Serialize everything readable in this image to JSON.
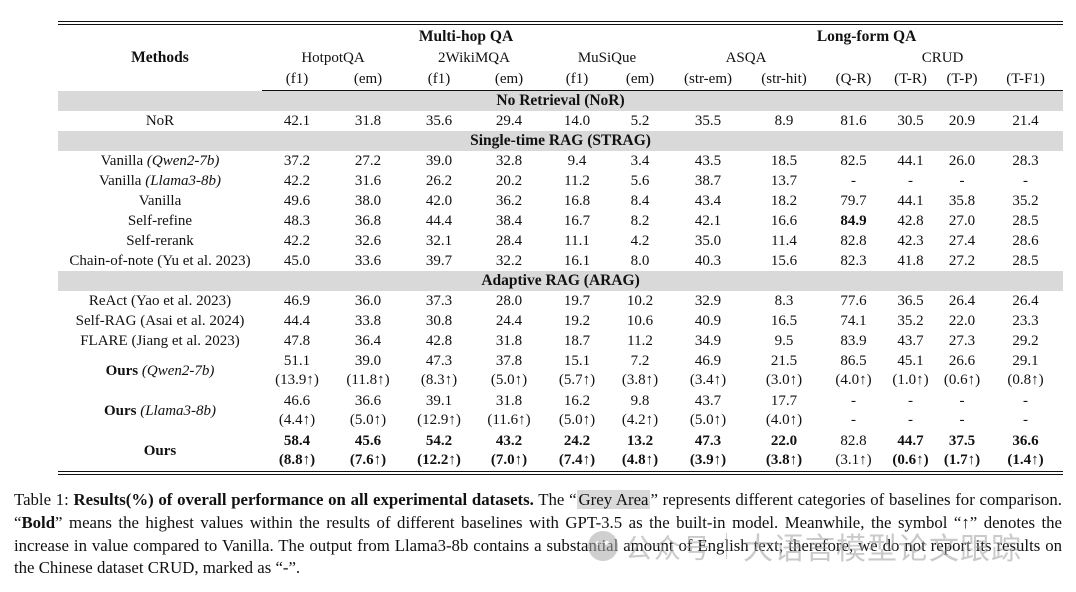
{
  "colors": {
    "banner_grey": "#d9d9d9",
    "highlight_grey": "#d9d9d9",
    "watermark_grey": "#a8a8a8"
  },
  "table": {
    "header": {
      "methods_label": "Methods",
      "groups": [
        {
          "label": "Multi-hop QA",
          "span": 6
        },
        {
          "label": "Long-form QA",
          "span": 6
        }
      ],
      "datasets": [
        {
          "label": "HotpotQA",
          "span": 2
        },
        {
          "label": "2WikiMQA",
          "span": 2
        },
        {
          "label": "MuSiQue",
          "span": 2
        },
        {
          "label": "ASQA",
          "span": 2
        },
        {
          "label": "CRUD",
          "span": 4
        }
      ],
      "metrics": [
        "(f1)",
        "(em)",
        "(f1)",
        "(em)",
        "(f1)",
        "(em)",
        "(str-em)",
        "(str-hit)",
        "(Q-R)",
        "(T-R)",
        "(T-P)",
        "(T-F1)"
      ]
    },
    "sections": [
      {
        "banner": "No Retrieval (NoR)",
        "rows": [
          {
            "method": {
              "name": "NoR"
            },
            "values": [
              "42.1",
              "31.8",
              "35.6",
              "29.4",
              "14.0",
              "5.2",
              "35.5",
              "8.9",
              "81.6",
              "30.5",
              "20.9",
              "21.4"
            ]
          }
        ]
      },
      {
        "banner": "Single-time RAG (STRAG)",
        "rows": [
          {
            "method": {
              "name": "Vanilla",
              "paren": "(Qwen2-7b)",
              "paren_italic": true
            },
            "values": [
              "37.2",
              "27.2",
              "39.0",
              "32.8",
              "9.4",
              "3.4",
              "43.5",
              "18.5",
              "82.5",
              "44.1",
              "26.0",
              "28.3"
            ]
          },
          {
            "method": {
              "name": "Vanilla",
              "paren": "(Llama3-8b)",
              "paren_italic": true
            },
            "values": [
              "42.2",
              "31.6",
              "26.2",
              "20.2",
              "11.2",
              "5.6",
              "38.7",
              "13.7",
              "-",
              "-",
              "-",
              "-"
            ]
          },
          {
            "method": {
              "name": "Vanilla"
            },
            "values": [
              "49.6",
              "38.0",
              "42.0",
              "36.2",
              "16.8",
              "8.4",
              "43.4",
              "18.2",
              "79.7",
              "44.1",
              "35.8",
              "35.2"
            ]
          },
          {
            "method": {
              "name": "Self-refine"
            },
            "values": [
              "48.3",
              "36.8",
              "44.4",
              "38.4",
              "16.7",
              "8.2",
              "42.1",
              "16.6",
              "84.9",
              "42.8",
              "27.0",
              "28.5"
            ],
            "bold_cols": [
              8
            ]
          },
          {
            "method": {
              "name": "Self-rerank"
            },
            "values": [
              "42.2",
              "32.6",
              "32.1",
              "28.4",
              "11.1",
              "4.2",
              "35.0",
              "11.4",
              "82.8",
              "42.3",
              "27.4",
              "28.6"
            ]
          },
          {
            "method": {
              "name": "Chain-of-note",
              "paren": "(Yu et al. 2023)"
            },
            "values": [
              "45.0",
              "33.6",
              "39.7",
              "32.2",
              "16.1",
              "8.0",
              "40.3",
              "15.6",
              "82.3",
              "41.8",
              "27.2",
              "28.5"
            ]
          }
        ]
      },
      {
        "banner": "Adaptive RAG (ARAG)",
        "rows": [
          {
            "method": {
              "name": "ReAct",
              "paren": "(Yao et al. 2023)"
            },
            "values": [
              "46.9",
              "36.0",
              "37.3",
              "28.0",
              "19.7",
              "10.2",
              "32.9",
              "8.3",
              "77.6",
              "36.5",
              "26.4",
              "26.4"
            ]
          },
          {
            "method": {
              "name": "Self-RAG",
              "paren": "(Asai et al. 2024)"
            },
            "values": [
              "44.4",
              "33.8",
              "30.8",
              "24.4",
              "19.2",
              "10.6",
              "40.9",
              "16.5",
              "74.1",
              "35.2",
              "22.0",
              "23.3"
            ]
          },
          {
            "method": {
              "name": "FLARE",
              "paren": "(Jiang et al. 2023)"
            },
            "values": [
              "47.8",
              "36.4",
              "42.8",
              "31.8",
              "18.7",
              "11.2",
              "34.9",
              "9.5",
              "83.9",
              "43.7",
              "27.3",
              "29.2"
            ]
          },
          {
            "method": {
              "name": "Ours",
              "bold": true,
              "paren": "(Qwen2-7b)",
              "paren_italic": true
            },
            "values": [
              "51.1",
              "39.0",
              "47.3",
              "37.8",
              "15.1",
              "7.2",
              "46.9",
              "21.5",
              "86.5",
              "45.1",
              "26.6",
              "29.1"
            ],
            "deltas": [
              "(13.9↑)",
              "(11.8↑)",
              "(8.3↑)",
              "(5.0↑)",
              "(5.7↑)",
              "(3.8↑)",
              "(3.4↑)",
              "(3.0↑)",
              "(4.0↑)",
              "(1.0↑)",
              "(0.6↑)",
              "(0.8↑)"
            ]
          },
          {
            "method": {
              "name": "Ours",
              "bold": true,
              "paren": "(Llama3-8b)",
              "paren_italic": true
            },
            "values": [
              "46.6",
              "36.6",
              "39.1",
              "31.8",
              "16.2",
              "9.8",
              "43.7",
              "17.7",
              "-",
              "-",
              "-",
              "-"
            ],
            "deltas": [
              "(4.4↑)",
              "(5.0↑)",
              "(12.9↑)",
              "(11.6↑)",
              "(5.0↑)",
              "(4.2↑)",
              "(5.0↑)",
              "(4.0↑)",
              "-",
              "-",
              "-",
              "-"
            ]
          },
          {
            "method": {
              "name": "Ours",
              "bold": true
            },
            "values": [
              "58.4",
              "45.6",
              "54.2",
              "43.2",
              "24.2",
              "13.2",
              "47.3",
              "22.0",
              "82.8",
              "44.7",
              "37.5",
              "36.6"
            ],
            "deltas": [
              "(8.8↑)",
              "(7.6↑)",
              "(12.2↑)",
              "(7.0↑)",
              "(7.4↑)",
              "(4.8↑)",
              "(3.9↑)",
              "(3.8↑)",
              "(3.1↑)",
              "(0.6↑)",
              "(1.7↑)",
              "(1.4↑)"
            ],
            "bold_cols": [
              0,
              1,
              2,
              3,
              4,
              5,
              6,
              7,
              9,
              10,
              11
            ]
          }
        ]
      }
    ]
  },
  "caption": {
    "segments": [
      {
        "text": "Table 1: "
      },
      {
        "text": "Results(%) of overall performance on all experimental datasets.",
        "bold": true
      },
      {
        "text": " The “"
      },
      {
        "text": "Grey Area",
        "highlight": true
      },
      {
        "text": "” represents different categories of baselines for comparison. “"
      },
      {
        "text": "Bold",
        "bold": true
      },
      {
        "text": "” means the highest values within the results of different baselines with GPT-3.5 as the built-in model. Meanwhile, the symbol “↑” denotes the increase in value compared to Vanilla. The output from Llama3-8b contains a substantial amount of English text; therefore, we do not report its results on the Chinese dataset CRUD, marked as “-”."
      }
    ]
  },
  "watermark": {
    "label": "公众号",
    "text": "大语言模型论文跟踪"
  }
}
